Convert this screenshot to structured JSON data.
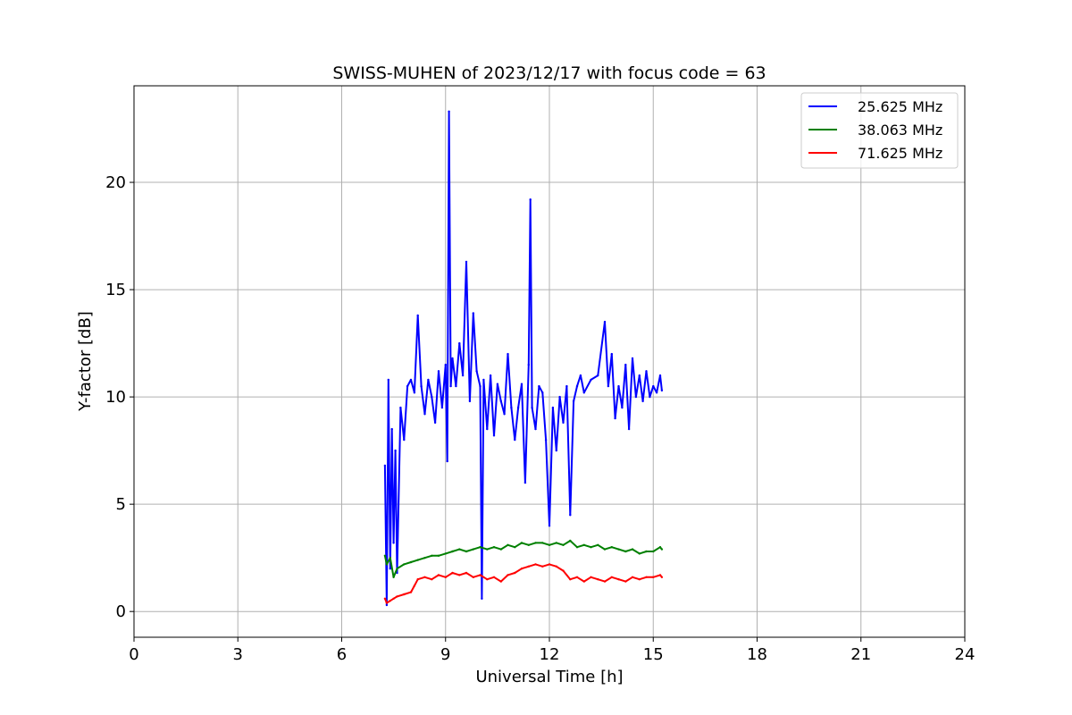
{
  "chart_data": {
    "type": "line",
    "title": "SWISS-MUHEN of 2023/12/17 with focus code = 63",
    "xlabel": "Universal Time [h]",
    "ylabel": "Y-factor [dB]",
    "xlim": [
      0,
      24
    ],
    "ylim": [
      -1.2,
      24.5
    ],
    "xticks": [
      0,
      3,
      6,
      9,
      12,
      15,
      18,
      21,
      24
    ],
    "xtick_labels": [
      "0",
      "3",
      "6",
      "9",
      "12",
      "15",
      "18",
      "21",
      "24"
    ],
    "yticks": [
      0,
      5,
      10,
      15,
      20
    ],
    "ytick_labels": [
      "0",
      "5",
      "10",
      "15",
      "20"
    ],
    "grid": true,
    "legend_position": "top-right",
    "series": [
      {
        "name": "25.625 MHz",
        "color": "#0000ff",
        "x": [
          7.25,
          7.3,
          7.35,
          7.4,
          7.45,
          7.5,
          7.55,
          7.6,
          7.7,
          7.8,
          7.9,
          8.0,
          8.1,
          8.2,
          8.3,
          8.4,
          8.5,
          8.6,
          8.7,
          8.8,
          8.9,
          9.0,
          9.05,
          9.1,
          9.15,
          9.2,
          9.3,
          9.4,
          9.5,
          9.6,
          9.7,
          9.8,
          9.9,
          10.0,
          10.05,
          10.1,
          10.2,
          10.3,
          10.4,
          10.5,
          10.6,
          10.7,
          10.8,
          10.9,
          11.0,
          11.1,
          11.2,
          11.3,
          11.4,
          11.45,
          11.5,
          11.6,
          11.7,
          11.8,
          11.9,
          12.0,
          12.1,
          12.2,
          12.3,
          12.4,
          12.5,
          12.6,
          12.7,
          12.8,
          12.9,
          13.0,
          13.2,
          13.4,
          13.6,
          13.7,
          13.8,
          13.9,
          14.0,
          14.1,
          14.2,
          14.3,
          14.4,
          14.5,
          14.6,
          14.7,
          14.8,
          14.9,
          15.0,
          15.1,
          15.2,
          15.25
        ],
        "y": [
          6.8,
          0.3,
          10.8,
          2.0,
          8.5,
          3.2,
          7.5,
          1.8,
          9.5,
          8.0,
          10.5,
          10.8,
          10.2,
          13.8,
          10.5,
          9.2,
          10.8,
          10.0,
          8.8,
          11.2,
          9.5,
          11.5,
          7.0,
          23.3,
          10.5,
          11.8,
          10.5,
          12.5,
          11.0,
          16.3,
          9.8,
          13.9,
          11.2,
          10.5,
          0.6,
          10.8,
          8.5,
          11.0,
          8.2,
          10.6,
          9.8,
          9.2,
          12.0,
          9.5,
          8.0,
          9.5,
          10.6,
          6.0,
          11.5,
          19.2,
          9.5,
          8.5,
          10.5,
          10.2,
          8.0,
          4.0,
          9.5,
          7.5,
          10.0,
          8.8,
          10.5,
          4.5,
          9.8,
          10.5,
          11.0,
          10.2,
          10.8,
          11.0,
          13.5,
          10.5,
          12.0,
          9.0,
          10.5,
          9.5,
          11.5,
          8.5,
          11.8,
          10.0,
          11.0,
          9.8,
          11.2,
          10.0,
          10.5,
          10.2,
          11.0,
          10.3
        ]
      },
      {
        "name": "38.063 MHz",
        "color": "#008000",
        "x": [
          7.25,
          7.3,
          7.4,
          7.5,
          7.6,
          7.8,
          8.0,
          8.2,
          8.4,
          8.6,
          8.8,
          9.0,
          9.2,
          9.4,
          9.6,
          9.8,
          10.0,
          10.2,
          10.4,
          10.6,
          10.8,
          11.0,
          11.2,
          11.4,
          11.6,
          11.8,
          12.0,
          12.2,
          12.4,
          12.6,
          12.8,
          13.0,
          13.2,
          13.4,
          13.6,
          13.8,
          14.0,
          14.2,
          14.4,
          14.6,
          14.8,
          15.0,
          15.2,
          15.25
        ],
        "y": [
          2.6,
          2.2,
          2.5,
          1.6,
          2.0,
          2.2,
          2.3,
          2.4,
          2.5,
          2.6,
          2.6,
          2.7,
          2.8,
          2.9,
          2.8,
          2.9,
          3.0,
          2.9,
          3.0,
          2.9,
          3.1,
          3.0,
          3.2,
          3.1,
          3.2,
          3.2,
          3.1,
          3.2,
          3.1,
          3.3,
          3.0,
          3.1,
          3.0,
          3.1,
          2.9,
          3.0,
          2.9,
          2.8,
          2.9,
          2.7,
          2.8,
          2.8,
          3.0,
          2.9
        ]
      },
      {
        "name": "71.625 MHz",
        "color": "#ff0000",
        "x": [
          7.25,
          7.3,
          7.4,
          7.5,
          7.6,
          7.8,
          8.0,
          8.1,
          8.2,
          8.4,
          8.6,
          8.8,
          9.0,
          9.2,
          9.4,
          9.6,
          9.8,
          10.0,
          10.2,
          10.4,
          10.6,
          10.8,
          11.0,
          11.2,
          11.4,
          11.6,
          11.8,
          12.0,
          12.2,
          12.4,
          12.6,
          12.8,
          13.0,
          13.2,
          13.4,
          13.6,
          13.8,
          14.0,
          14.2,
          14.4,
          14.6,
          14.8,
          15.0,
          15.2,
          15.25
        ],
        "y": [
          0.6,
          0.4,
          0.5,
          0.6,
          0.7,
          0.8,
          0.9,
          1.2,
          1.5,
          1.6,
          1.5,
          1.7,
          1.6,
          1.8,
          1.7,
          1.8,
          1.6,
          1.7,
          1.5,
          1.6,
          1.4,
          1.7,
          1.8,
          2.0,
          2.1,
          2.2,
          2.1,
          2.2,
          2.1,
          1.9,
          1.5,
          1.6,
          1.4,
          1.6,
          1.5,
          1.4,
          1.6,
          1.5,
          1.4,
          1.6,
          1.5,
          1.6,
          1.6,
          1.7,
          1.6
        ]
      }
    ]
  }
}
